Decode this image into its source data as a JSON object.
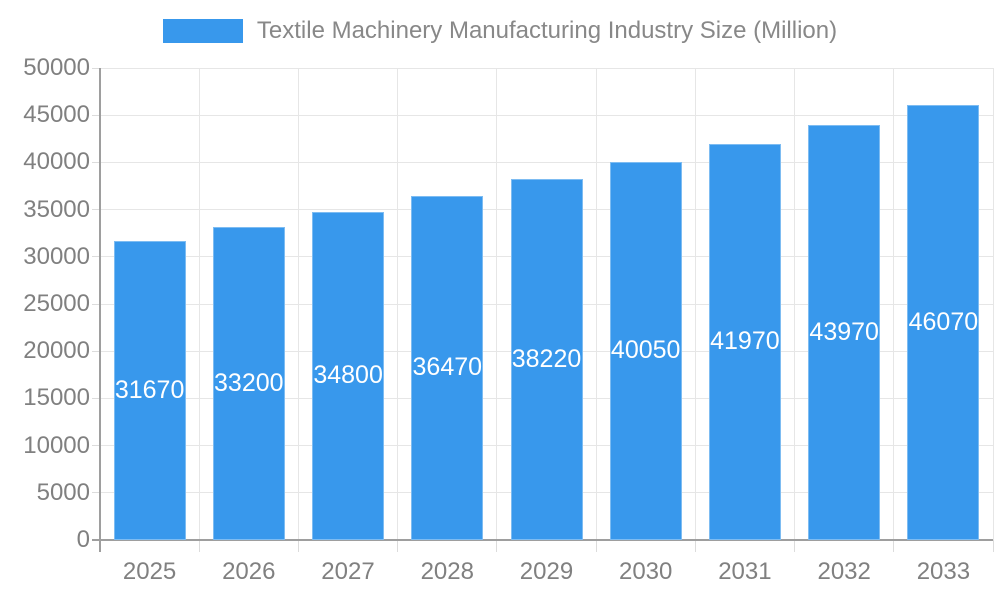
{
  "chart_data": {
    "type": "bar",
    "title": "Textile Machinery Manufacturing Industry Size (Million)",
    "categories": [
      "2025",
      "2026",
      "2027",
      "2028",
      "2029",
      "2030",
      "2031",
      "2032",
      "2033"
    ],
    "series": [
      {
        "name": "Textile Machinery Manufacturing Industry Size (Million)",
        "values": [
          31670,
          33200,
          34800,
          36470,
          38220,
          40050,
          41970,
          43970,
          46070
        ]
      }
    ],
    "ylim": [
      0,
      50000
    ],
    "ytick_step": 5000,
    "yticks": [
      "0",
      "5000",
      "10000",
      "15000",
      "20000",
      "25000",
      "30000",
      "35000",
      "40000",
      "45000",
      "50000"
    ],
    "xlabel": "",
    "ylabel": "",
    "grid": true,
    "legend_position": "top",
    "bar_label_position": "inside-center",
    "colors": {
      "bar": "#3898EC",
      "grid": "#E6E6E6",
      "tick": "#DCDCDC",
      "axis": "#9E9E9E",
      "axis_text": "#808080",
      "legend_text": "#888888",
      "bar_label_text": "#FFFFFF"
    }
  }
}
